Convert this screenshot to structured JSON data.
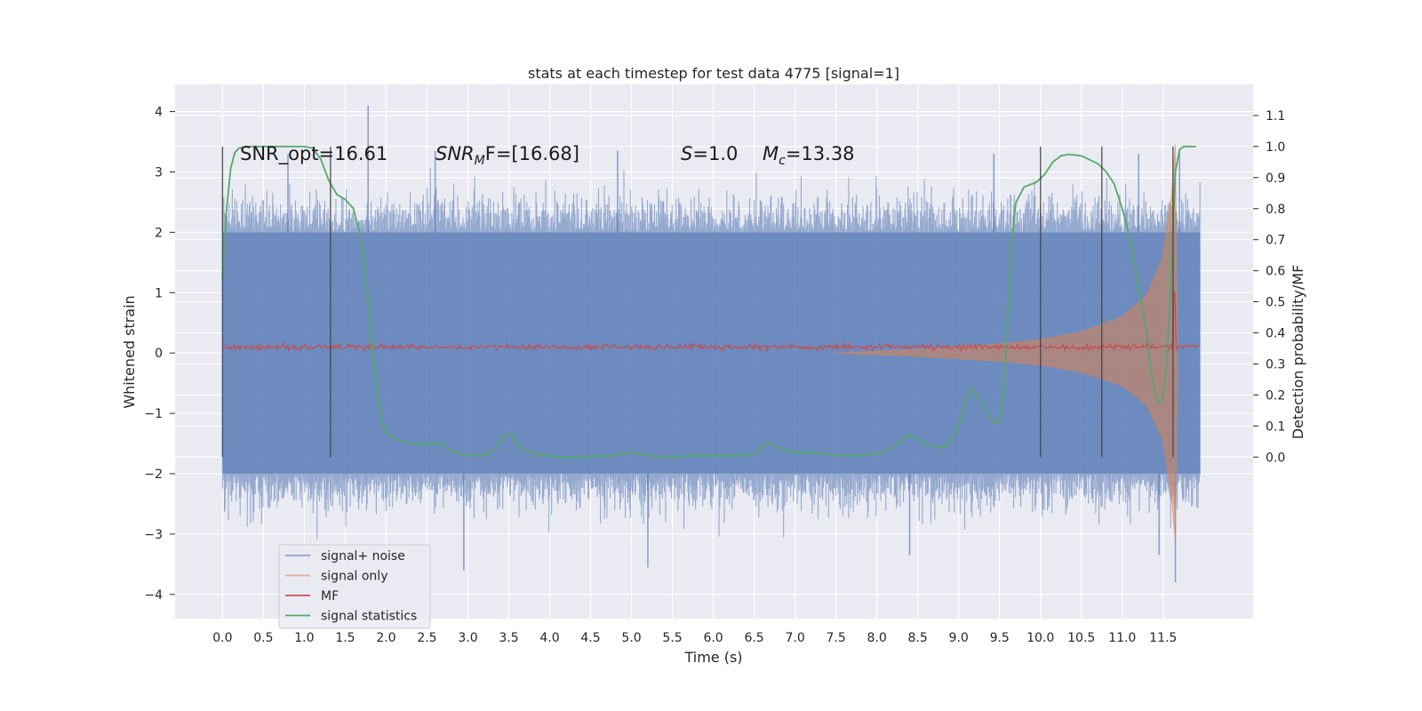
{
  "chart_data": {
    "type": "line",
    "title": "stats at each timestep for test data 4775 [signal=1]",
    "xlabel": "Time (s)",
    "ylabel": "Whitened strain",
    "ylabel_right": "Detection probability/MF",
    "xlim": [
      -0.58,
      12.6
    ],
    "ylim": [
      -4.4,
      4.45
    ],
    "ylim_right": [
      -0.52,
      1.2
    ],
    "x_ticks": [
      "0.0",
      "0.5",
      "1.0",
      "1.5",
      "2.0",
      "2.5",
      "3.0",
      "3.5",
      "4.0",
      "4.5",
      "5.0",
      "5.5",
      "6.0",
      "6.5",
      "7.0",
      "7.5",
      "8.0",
      "8.5",
      "9.0",
      "9.5",
      "10.0",
      "10.5",
      "11.0",
      "11.5"
    ],
    "y_ticks": [
      "4",
      "3",
      "2",
      "1",
      "0",
      "−1",
      "−2",
      "−3",
      "−4"
    ],
    "y_ticks_right": [
      "1.1",
      "1.0",
      "0.9",
      "0.8",
      "0.7",
      "0.6",
      "0.5",
      "0.4",
      "0.3",
      "0.2",
      "0.1",
      "0.0"
    ],
    "grid": true,
    "legend_placement": "lower-left",
    "background": "#eaeaf2",
    "annotations": [
      {
        "text": "SNR_opt=16.61"
      },
      {
        "prefix": "SNR",
        "sub": "M",
        "suffix": "F=[16.68]"
      },
      {
        "prefix": "S",
        "suffix": "=1.0"
      },
      {
        "prefix": "M",
        "sub": "c",
        "suffix": "=13.38"
      }
    ],
    "vertical_markers_x": [
      0.0,
      1.32,
      10.0,
      10.75,
      11.62
    ],
    "series": [
      {
        "name": "signal+ noise",
        "color": "#4c72b0",
        "axis": "left",
        "kind": "noise_band",
        "x_range": [
          0.0,
          11.95
        ],
        "typical_range": [
          -2.0,
          2.0
        ],
        "extremes_max": [
          [
            0.8,
            3.3
          ],
          [
            1.78,
            4.1
          ],
          [
            2.6,
            3.35
          ],
          [
            4.83,
            3.35
          ],
          [
            9.43,
            3.3
          ],
          [
            11.2,
            3.3
          ],
          [
            11.7,
            3.35
          ]
        ],
        "extremes_min": [
          [
            2.95,
            -3.6
          ],
          [
            5.2,
            -3.55
          ],
          [
            8.4,
            -3.35
          ],
          [
            11.45,
            -3.35
          ],
          [
            11.65,
            -3.8
          ]
        ]
      },
      {
        "name": "signal only",
        "color": "#dd8452",
        "axis": "left",
        "kind": "chirp",
        "x_range": [
          7.5,
          11.68
        ],
        "amplitude_points": [
          [
            7.5,
            0.0
          ],
          [
            8.5,
            0.06
          ],
          [
            9.5,
            0.15
          ],
          [
            10.0,
            0.22
          ],
          [
            10.5,
            0.35
          ],
          [
            11.0,
            0.6
          ],
          [
            11.3,
            0.95
          ],
          [
            11.5,
            1.6
          ],
          [
            11.6,
            2.6
          ],
          [
            11.65,
            3.5
          ],
          [
            11.68,
            0.0
          ]
        ]
      },
      {
        "name": "MF",
        "color": "#c44e52",
        "axis": "left",
        "kind": "baseline_noise",
        "x_range": [
          0.0,
          11.95
        ],
        "baseline": 0.1,
        "jitter": 0.1,
        "peaks": [
          [
            11.64,
            1.0
          ]
        ]
      },
      {
        "name": "signal statistics",
        "color": "#55a868",
        "axis": "right",
        "kind": "line",
        "x": [
          0.0,
          0.05,
          0.1,
          0.15,
          0.2,
          0.3,
          0.5,
          0.8,
          1.0,
          1.1,
          1.2,
          1.3,
          1.4,
          1.5,
          1.6,
          1.7,
          1.75,
          1.8,
          1.85,
          1.9,
          1.95,
          2.0,
          2.1,
          2.2,
          2.4,
          2.6,
          2.7,
          2.8,
          3.0,
          3.2,
          3.35,
          3.45,
          3.5,
          3.55,
          3.6,
          3.7,
          3.9,
          4.2,
          4.5,
          4.8,
          5.0,
          5.2,
          5.5,
          5.8,
          6.0,
          6.3,
          6.5,
          6.6,
          6.7,
          6.8,
          7.0,
          7.2,
          7.5,
          7.8,
          8.0,
          8.2,
          8.3,
          8.4,
          8.5,
          8.6,
          8.8,
          8.9,
          9.0,
          9.1,
          9.15,
          9.2,
          9.3,
          9.4,
          9.45,
          9.5,
          9.55,
          9.6,
          9.65,
          9.7,
          9.8,
          9.95,
          10.05,
          10.15,
          10.25,
          10.35,
          10.5,
          10.7,
          10.8,
          10.9,
          11.0,
          11.1,
          11.2,
          11.3,
          11.35,
          11.4,
          11.45,
          11.5,
          11.55,
          11.6,
          11.65,
          11.7,
          11.75,
          11.8,
          11.9
        ],
        "y": [
          0.57,
          0.8,
          0.93,
          0.98,
          0.995,
          1.0,
          1.0,
          1.0,
          1.0,
          0.995,
          0.96,
          0.89,
          0.845,
          0.83,
          0.8,
          0.7,
          0.6,
          0.45,
          0.32,
          0.2,
          0.12,
          0.08,
          0.06,
          0.05,
          0.04,
          0.045,
          0.04,
          0.02,
          0.005,
          0.005,
          0.03,
          0.068,
          0.075,
          0.07,
          0.045,
          0.02,
          0.005,
          0.0,
          0.002,
          0.005,
          0.015,
          0.005,
          0.0,
          0.005,
          0.005,
          0.005,
          0.008,
          0.035,
          0.045,
          0.03,
          0.015,
          0.015,
          0.005,
          0.005,
          0.01,
          0.03,
          0.055,
          0.07,
          0.06,
          0.04,
          0.03,
          0.045,
          0.1,
          0.18,
          0.22,
          0.21,
          0.17,
          0.12,
          0.11,
          0.11,
          0.2,
          0.42,
          0.7,
          0.82,
          0.87,
          0.885,
          0.91,
          0.95,
          0.97,
          0.975,
          0.97,
          0.945,
          0.92,
          0.88,
          0.8,
          0.7,
          0.55,
          0.4,
          0.28,
          0.21,
          0.175,
          0.19,
          0.33,
          0.6,
          0.92,
          0.99,
          1.0,
          1.0,
          1.0
        ]
      }
    ]
  }
}
